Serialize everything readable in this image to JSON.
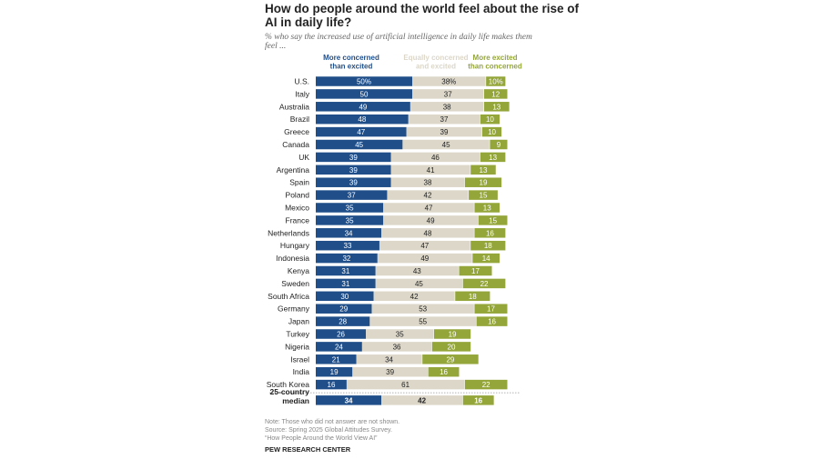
{
  "chart_data": {
    "type": "bar",
    "stacked": true,
    "orientation": "horizontal",
    "title": "How do people around the world feel about the rise of AI in daily life?",
    "title_lines": [
      "How do people around the world feel about the rise of",
      "AI in daily life?"
    ],
    "subtitle": "% who say the increased use of artificial intelligence in daily life makes them feel ...",
    "subtitle_lines": [
      "% who say the increased use of artificial intelligence in daily life makes them",
      "feel ..."
    ],
    "categories": [
      "U.S.",
      "Italy",
      "Australia",
      "Brazil",
      "Greece",
      "Canada",
      "UK",
      "Argentina",
      "Spain",
      "Poland",
      "Mexico",
      "France",
      "Netherlands",
      "Hungary",
      "Indonesia",
      "Kenya",
      "Sweden",
      "South Africa",
      "Germany",
      "Japan",
      "Turkey",
      "Nigeria",
      "Israel",
      "India",
      "South Korea"
    ],
    "series": [
      {
        "name": "More concerned than excited",
        "legend_lines": [
          "More concerned",
          "than excited"
        ],
        "color": "#1f4e89",
        "label_color": "#ffffff",
        "values": [
          50,
          50,
          49,
          48,
          47,
          45,
          39,
          39,
          39,
          37,
          35,
          35,
          34,
          33,
          32,
          31,
          31,
          30,
          29,
          28,
          26,
          24,
          21,
          19,
          16
        ]
      },
      {
        "name": "Equally concerned and excited",
        "legend_lines": [
          "Equally concerned",
          "and excited"
        ],
        "color": "#dcd7c9",
        "label_color": "#222222",
        "values": [
          38,
          37,
          38,
          37,
          39,
          45,
          46,
          41,
          38,
          42,
          47,
          49,
          48,
          47,
          49,
          43,
          45,
          42,
          53,
          55,
          35,
          36,
          34,
          39,
          61
        ]
      },
      {
        "name": "More excited than concerned",
        "legend_lines": [
          "More excited",
          "than concerned"
        ],
        "color": "#94a63a",
        "label_color": "#ffffff",
        "values": [
          10,
          12,
          13,
          10,
          10,
          9,
          13,
          13,
          19,
          15,
          13,
          15,
          16,
          18,
          14,
          17,
          22,
          18,
          17,
          16,
          19,
          20,
          29,
          16,
          22
        ]
      }
    ],
    "first_row_suffix": "%",
    "median": {
      "label_lines": [
        "25-country",
        "median"
      ],
      "values": [
        34,
        42,
        16
      ]
    },
    "xlim": [
      0,
      100
    ]
  },
  "notes": {
    "note": "Note: Those who did not answer are not shown.",
    "source": "Source: Spring 2025 Global Attitudes Survey.",
    "report": "“How People Around the World View AI”",
    "org": "PEW RESEARCH CENTER"
  }
}
